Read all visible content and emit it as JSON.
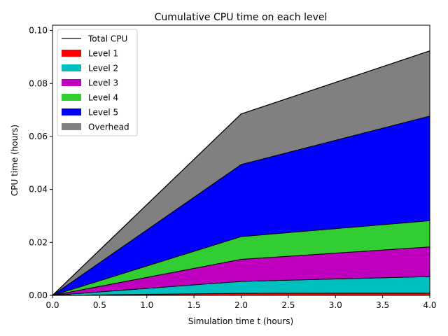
{
  "chart_data": {
    "type": "area",
    "title": "Cumulative CPU time on each level",
    "xlabel": "Simulation time t (hours)",
    "ylabel": "CPU time (hours)",
    "xlim": [
      0,
      4
    ],
    "ylim": [
      0,
      0.102
    ],
    "x": [
      0,
      2,
      4
    ],
    "x_ticks": [
      "0.0",
      "0.5",
      "1.0",
      "1.5",
      "2.0",
      "2.5",
      "3.0",
      "3.5",
      "4.0"
    ],
    "y_ticks": [
      "0.00",
      "0.02",
      "0.04",
      "0.06",
      "0.08",
      "0.10"
    ],
    "stacked": true,
    "grid": false,
    "legend_position": "top-left",
    "series": [
      {
        "name": "Level 1",
        "color": "#ff0000",
        "values": [
          0,
          0.0008,
          0.0009
        ]
      },
      {
        "name": "Level 2",
        "color": "#00bfbf",
        "values": [
          0,
          0.0045,
          0.0062
        ]
      },
      {
        "name": "Level 3",
        "color": "#bf00bf",
        "values": [
          0,
          0.0083,
          0.0112
        ]
      },
      {
        "name": "Level 4",
        "color": "#32cd32",
        "values": [
          0,
          0.0086,
          0.0099
        ]
      },
      {
        "name": "Level 5",
        "color": "#0000ff",
        "values": [
          0,
          0.0272,
          0.0395
        ]
      },
      {
        "name": "Overhead",
        "color": "#808080",
        "values": [
          0,
          0.0191,
          0.0246
        ]
      }
    ],
    "total": {
      "name": "Total CPU",
      "color": "#000000",
      "values": [
        0,
        0.0685,
        0.0923
      ]
    }
  }
}
